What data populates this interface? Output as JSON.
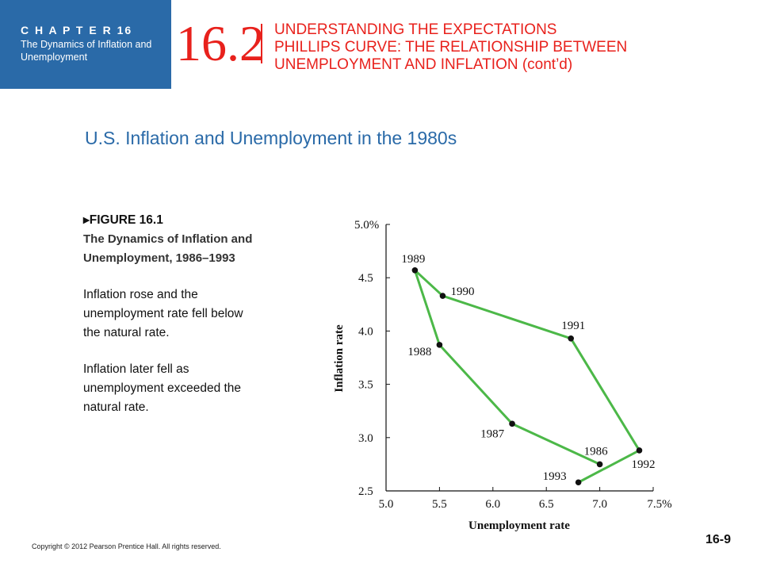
{
  "header": {
    "chapter_label": "C H A P T E R   16",
    "chapter_subtitle": "The Dynamics of Inflation and Unemployment",
    "section_number": "16.2",
    "section_title_lines": [
      "UNDERSTANDING THE EXPECTATIONS",
      "PHILLIPS CURVE: THE RELATIONSHIP BETWEEN",
      "UNEMPLOYMENT AND INFLATION (cont’d)"
    ]
  },
  "slide_subtitle": "U.S. Inflation and Unemployment in the 1980s",
  "caption": {
    "figure_label": "FIGURE 16.1",
    "figure_title_lines": [
      "The Dynamics of Inflation and",
      "Unemployment, 1986–1993"
    ],
    "paragraph1_lines": [
      "Inflation rose and the",
      "unemployment rate fell below",
      "the natural rate."
    ],
    "paragraph2_lines": [
      "Inflation later fell as",
      "unemployment exceeded the",
      "natural rate."
    ]
  },
  "footer": {
    "copyright": "Copyright © 2012 Pearson Prentice Hall. All rights reserved.",
    "page_number": "16-9"
  },
  "colors": {
    "header_box": "#2a6aa8",
    "section_red": "#e8211c",
    "subtitle_blue": "#2a6aa8",
    "line_green": "#4cb848",
    "point_black": "#111111"
  },
  "chart_data": {
    "type": "line",
    "xlabel": "Unemployment rate",
    "ylabel": "Inflation rate",
    "xlim": [
      5.0,
      7.5
    ],
    "ylim": [
      2.5,
      5.0
    ],
    "x_ticks": [
      "5.0",
      "5.5",
      "6.0",
      "6.5",
      "7.0",
      "7.5%"
    ],
    "y_ticks": [
      "2.5",
      "3.0",
      "3.5",
      "4.0",
      "4.5",
      "5.0%"
    ],
    "grid": false,
    "series": [
      {
        "points": [
          {
            "year": "1986",
            "x": 7.0,
            "y": 2.75
          },
          {
            "year": "1987",
            "x": 6.18,
            "y": 3.13
          },
          {
            "year": "1988",
            "x": 5.5,
            "y": 3.87
          },
          {
            "year": "1989",
            "x": 5.27,
            "y": 4.57
          },
          {
            "year": "1990",
            "x": 5.53,
            "y": 4.33
          },
          {
            "year": "1991",
            "x": 6.73,
            "y": 3.93
          },
          {
            "year": "1992",
            "x": 7.37,
            "y": 2.88
          },
          {
            "year": "1993",
            "x": 6.8,
            "y": 2.58
          }
        ]
      }
    ]
  }
}
